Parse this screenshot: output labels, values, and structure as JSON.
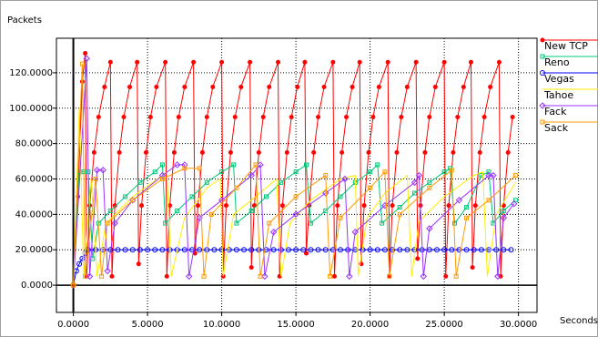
{
  "chart_data": {
    "type": "line",
    "ylabel": "Packets",
    "xlabel": "Seconds",
    "xlim": [
      -1.14,
      31.25
    ],
    "ylim": [
      -15.4,
      139.5
    ],
    "xticks": [
      {
        "value": 0,
        "label": "0.0000"
      },
      {
        "value": 5,
        "label": "5.0000"
      },
      {
        "value": 10,
        "label": "10.0000"
      },
      {
        "value": 15,
        "label": "15.0000"
      },
      {
        "value": 20,
        "label": "20.0000"
      },
      {
        "value": 25,
        "label": "25.0000"
      },
      {
        "value": 30,
        "label": "30.0000"
      }
    ],
    "yticks": [
      {
        "value": 0,
        "label": "0.0000"
      },
      {
        "value": 20,
        "label": "20.0000"
      },
      {
        "value": 40,
        "label": "40.0000"
      },
      {
        "value": 60,
        "label": "60.0000"
      },
      {
        "value": 80,
        "label": "80.0000"
      },
      {
        "value": 100,
        "label": "100.0000"
      },
      {
        "value": 120,
        "label": "120.0000"
      }
    ],
    "grid": true,
    "legend": "right",
    "series": [
      {
        "name": "New TCP",
        "color": "#ff0000",
        "marker": "dot",
        "x": [
          0,
          0.3,
          0.6,
          0.8,
          0.9,
          1.1,
          1.4,
          1.7,
          2.1,
          2.5,
          2.6,
          2.8,
          3.1,
          3.4,
          3.8,
          4.3,
          4.4,
          4.6,
          4.9,
          5.2,
          5.6,
          6.2,
          6.3,
          6.5,
          6.8,
          7.1,
          7.5,
          8.1,
          8.2,
          8.4,
          8.7,
          9.0,
          9.4,
          10.0,
          10.1,
          10.3,
          10.6,
          10.9,
          11.3,
          11.9,
          12.0,
          12.2,
          12.5,
          12.8,
          13.2,
          13.8,
          13.9,
          14.1,
          14.4,
          14.7,
          15.1,
          15.6,
          15.7,
          15.9,
          16.2,
          16.5,
          16.9,
          17.5,
          17.6,
          17.8,
          18.1,
          18.4,
          18.8,
          19.3,
          19.4,
          19.6,
          19.9,
          20.2,
          20.6,
          21.2,
          21.3,
          21.5,
          21.8,
          22.1,
          22.5,
          23.1,
          23.2,
          23.4,
          23.7,
          24.0,
          24.4,
          25.0,
          25.1,
          25.3,
          25.6,
          25.9,
          26.3,
          26.8,
          26.9,
          27.1,
          27.4,
          27.7,
          28.1,
          28.7,
          28.8,
          29.0,
          29.3,
          29.6
        ],
        "values": [
          0,
          50,
          115,
          131,
          5,
          45,
          75,
          95,
          112,
          126,
          5,
          45,
          75,
          95,
          112,
          126,
          12,
          45,
          75,
          95,
          112,
          126,
          5,
          45,
          75,
          95,
          112,
          126,
          18,
          45,
          75,
          95,
          112,
          126,
          5,
          45,
          75,
          95,
          112,
          126,
          10,
          45,
          75,
          95,
          112,
          126,
          5,
          45,
          75,
          95,
          112,
          126,
          18,
          45,
          75,
          95,
          112,
          126,
          5,
          45,
          75,
          95,
          112,
          126,
          12,
          45,
          75,
          95,
          112,
          126,
          5,
          45,
          75,
          95,
          112,
          126,
          15,
          45,
          75,
          95,
          112,
          126,
          5,
          45,
          75,
          95,
          112,
          126,
          10,
          45,
          75,
          95,
          112,
          126,
          5,
          45,
          75,
          95
        ]
      },
      {
        "name": "Reno",
        "color": "#00c878",
        "marker": "square",
        "x": [
          0,
          0.4,
          0.7,
          1.0,
          1.3,
          1.7,
          2.5,
          3.5,
          4.5,
          5.5,
          6.0,
          6.2,
          7,
          8,
          9,
          10,
          10.8,
          11.0,
          12,
          13,
          14,
          15,
          15.7,
          16.0,
          17,
          18,
          19,
          20,
          20.5,
          20.8,
          22,
          23,
          24,
          25,
          25.4,
          25.7,
          26.5,
          27.5,
          28.0,
          28.3,
          29,
          29.8
        ],
        "values": [
          0,
          64,
          64,
          64,
          15,
          35,
          42,
          50,
          58,
          64,
          68,
          35,
          42,
          50,
          58,
          64,
          68,
          35,
          42,
          50,
          58,
          64,
          68,
          35,
          42,
          50,
          58,
          64,
          68,
          35,
          44,
          52,
          58,
          64,
          66,
          35,
          44,
          62,
          64,
          35,
          42,
          48
        ]
      },
      {
        "name": "Vegas",
        "color": "#0000ff",
        "marker": "circle",
        "x": [
          0,
          0.2,
          0.4,
          0.6,
          0.8,
          1,
          1.5,
          2,
          2.5,
          3,
          3.5,
          4,
          4.5,
          5,
          5.5,
          6,
          6.5,
          7,
          7.5,
          8,
          8.5,
          9,
          9.5,
          10,
          10.5,
          11,
          11.5,
          12,
          12.5,
          13,
          13.5,
          14,
          14.5,
          15,
          15.5,
          16,
          16.5,
          17,
          17.5,
          18,
          18.5,
          19,
          19.5,
          20,
          20.5,
          21,
          21.5,
          22,
          22.5,
          23,
          23.5,
          24,
          24.5,
          25,
          25.5,
          26,
          26.5,
          27,
          27.5,
          28,
          28.5,
          29,
          29.5
        ],
        "values": [
          0,
          8,
          12,
          15,
          18,
          20,
          20,
          20,
          20,
          20,
          20,
          20,
          20,
          20,
          20,
          20,
          20,
          20,
          20,
          20,
          20,
          20,
          20,
          20,
          20,
          20,
          20,
          20,
          20,
          20,
          20,
          20,
          20,
          20,
          20,
          20,
          20,
          20,
          20,
          20,
          20,
          20,
          20,
          20,
          20,
          20,
          20,
          20,
          20,
          20,
          20,
          20,
          20,
          20,
          20,
          20,
          20,
          20,
          20,
          20,
          20,
          20,
          20
        ]
      },
      {
        "name": "Tahoe",
        "color": "#ffee00",
        "marker": "none",
        "x": [
          0,
          0.4,
          0.7,
          1.2,
          1.6,
          2.2,
          4,
          6,
          6.3,
          6.6,
          7.5,
          9,
          9.9,
          10.1,
          10.8,
          12,
          13.7,
          14.0,
          14.6,
          16,
          18,
          19.0,
          19.2,
          19.8,
          21,
          22.5,
          22.8,
          23.3,
          25,
          27,
          27.6,
          27.9,
          28.5,
          29.8
        ],
        "values": [
          0,
          100,
          5,
          60,
          5,
          35,
          50,
          62,
          64,
          5,
          38,
          55,
          60,
          5,
          40,
          48,
          60,
          5,
          35,
          48,
          60,
          62,
          5,
          38,
          52,
          62,
          5,
          36,
          50,
          62,
          64,
          5,
          40,
          58
        ]
      },
      {
        "name": "Fack",
        "color": "#9933ff",
        "marker": "diamond",
        "x": [
          0,
          0.9,
          1.1,
          1.6,
          2.0,
          2.3,
          2.8,
          4,
          6,
          7,
          7.5,
          7.8,
          8.5,
          10,
          12,
          12.6,
          12.9,
          13.5,
          15,
          17,
          18.3,
          18.6,
          19,
          21,
          23,
          23.3,
          23.6,
          24,
          26,
          28,
          28.3,
          28.6,
          29,
          29.7
        ],
        "values": [
          0,
          128,
          5,
          65,
          65,
          8,
          35,
          48,
          62,
          68,
          68,
          5,
          38,
          48,
          62,
          68,
          5,
          30,
          40,
          52,
          60,
          5,
          30,
          45,
          58,
          62,
          5,
          32,
          48,
          62,
          62,
          5,
          38,
          46
        ]
      },
      {
        "name": "Sack",
        "color": "#ff9900",
        "marker": "square",
        "x": [
          0,
          0.6,
          0.8,
          1.5,
          1.9,
          2.3,
          4,
          6,
          7.5,
          8.5,
          8.8,
          9.3,
          11,
          12.3,
          12.6,
          13.2,
          15,
          17,
          17.3,
          18,
          20,
          21,
          21.3,
          22,
          24,
          25.5,
          25.8,
          26.5,
          28,
          29.8
        ],
        "values": [
          0,
          125,
          5,
          60,
          5,
          35,
          48,
          60,
          66,
          66,
          5,
          40,
          55,
          68,
          5,
          35,
          50,
          62,
          5,
          38,
          55,
          64,
          5,
          40,
          55,
          65,
          5,
          38,
          48,
          62
        ]
      }
    ]
  }
}
